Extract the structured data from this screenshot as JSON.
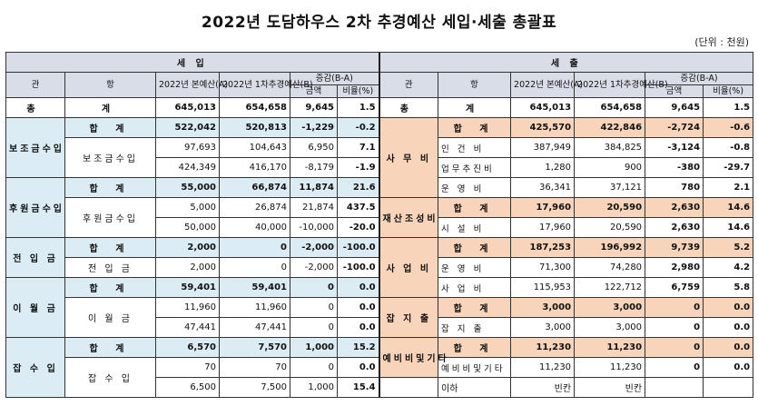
{
  "title": "2022년 도담하우스 2차 추경예산 세입·세출 총괄표",
  "unit": "(단위 : 천원)",
  "headers": {
    "income": "세 입",
    "expense": "세 출",
    "gwan": "관",
    "hang": "항",
    "col_a": "2022년 본예산(A)",
    "col_b": "2022년 1차추경예산(B)",
    "diff": "증감(B-A)",
    "amount": "금액",
    "ratio": "비율(%)"
  },
  "total": {
    "label_gwan": "총",
    "label_hang": "계",
    "in": [
      "645,013",
      "654,658",
      "9,645",
      "1.5"
    ],
    "out": [
      "645,013",
      "654,658",
      "9,645",
      "1.5"
    ]
  },
  "income": {
    "r1": {
      "gwan": "보조금수입",
      "hang": "합 계",
      "v": [
        "522,042",
        "520,813",
        "-1,229",
        "-0.2"
      ]
    },
    "r2": {
      "hang": "보조금수입",
      "v": [
        "97,693",
        "104,643",
        "6,950",
        "7.1"
      ]
    },
    "r3": {
      "v": [
        "424,349",
        "416,170",
        "-8,179",
        "-1.9"
      ]
    },
    "r4": {
      "gwan": "후원금수입",
      "hang": "합 계",
      "v": [
        "55,000",
        "66,874",
        "11,874",
        "21.6"
      ]
    },
    "r5": {
      "hang": "후원금수입",
      "v": [
        "5,000",
        "26,874",
        "21,874",
        "437.5"
      ]
    },
    "r6": {
      "v": [
        "50,000",
        "40,000",
        "-10,000",
        "-20.0"
      ]
    },
    "r7": {
      "gwan": "전 입 금",
      "hang": "합 계",
      "v": [
        "2,000",
        "0",
        "-2,000",
        "-100.0"
      ]
    },
    "r8": {
      "hang": "전 입 금",
      "v": [
        "2,000",
        "0",
        "-2,000",
        "-100.0"
      ]
    },
    "r9": {
      "gwan": "이 월 금",
      "hang": "합 계",
      "v": [
        "59,401",
        "59,401",
        "0",
        "0.0"
      ]
    },
    "r10": {
      "hang": "이 월 금",
      "v": [
        "11,960",
        "11,960",
        "0",
        "0.0"
      ]
    },
    "r11": {
      "v": [
        "47,441",
        "47,441",
        "0",
        "0.0"
      ]
    },
    "r12": {
      "gwan": "잡 수 입",
      "hang": "합 계",
      "v": [
        "6,570",
        "7,570",
        "1,000",
        "15.2"
      ]
    },
    "r13": {
      "hang": "잡 수 입",
      "v": [
        "70",
        "70",
        "0",
        "0.0"
      ]
    },
    "r14": {
      "v": [
        "6,500",
        "7,500",
        "1,000",
        "15.4"
      ]
    }
  },
  "expense": {
    "r1": {
      "gwan": "사 무 비",
      "hang": "합 계",
      "v": [
        "425,570",
        "422,846",
        "-2,724",
        "-0.6"
      ]
    },
    "r2": {
      "hang": "인 건 비",
      "v": [
        "387,949",
        "384,825",
        "-3,124",
        "-0.8"
      ]
    },
    "r3": {
      "hang": "업무추진비",
      "v": [
        "1,280",
        "900",
        "-380",
        "-29.7"
      ]
    },
    "r4": {
      "hang": "운 영 비",
      "v": [
        "36,341",
        "37,121",
        "780",
        "2.1"
      ]
    },
    "r5": {
      "gwan": "재산조성비",
      "hang": "합 계",
      "v": [
        "17,960",
        "20,590",
        "2,630",
        "14.6"
      ]
    },
    "r6": {
      "hang": "시 설 비",
      "v": [
        "17,960",
        "20,590",
        "2,630",
        "14.6"
      ]
    },
    "r7": {
      "gwan": "사 업 비",
      "hang": "합 계",
      "v": [
        "187,253",
        "196,992",
        "9,739",
        "5.2"
      ]
    },
    "r8": {
      "hang": "운 영 비",
      "v": [
        "71,300",
        "74,280",
        "2,980",
        "4.2"
      ]
    },
    "r9": {
      "hang": "사 업 비",
      "v": [
        "115,953",
        "122,712",
        "6,759",
        "5.8"
      ]
    },
    "r10": {
      "gwan": "잡 지 출",
      "hang": "합 계",
      "v": [
        "3,000",
        "3,000",
        "0",
        "0.0"
      ]
    },
    "r11": {
      "hang": "잡 지 출",
      "v": [
        "3,000",
        "3,000",
        "0",
        "0.0"
      ]
    },
    "r12": {
      "gwan": "예비비및기타",
      "hang": "합 계",
      "v": [
        "11,230",
        "11,230",
        "0",
        "0.0"
      ]
    },
    "r13": {
      "hang": "예비비및기타",
      "v": [
        "11,230",
        "11,230",
        "0",
        "0.0"
      ]
    },
    "r14": {
      "hang": "이하",
      "v": [
        "빈칸",
        "빈칸",
        "",
        ""
      ]
    }
  }
}
